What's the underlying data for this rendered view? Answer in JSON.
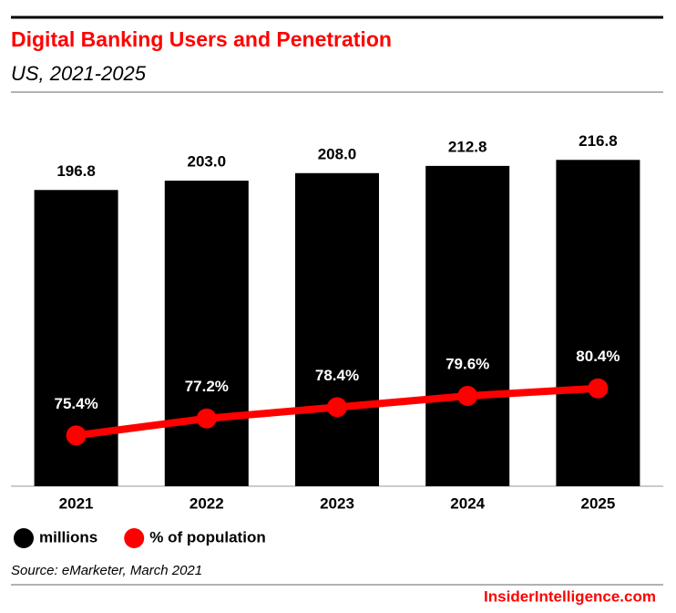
{
  "chart_data": {
    "type": "bar-line",
    "title": "Digital Banking Users and Penetration",
    "subtitle": "US, 2021-2025",
    "categories": [
      "2021",
      "2022",
      "2023",
      "2024",
      "2025"
    ],
    "series": [
      {
        "name": "millions",
        "color": "#000000",
        "values": [
          196.8,
          203.0,
          208.0,
          212.8,
          216.8
        ],
        "value_labels": [
          "196.8",
          "203.0",
          "208.0",
          "212.8",
          "216.8"
        ]
      },
      {
        "name": "% of population",
        "color": "#ff0000",
        "axis": "y2",
        "values": [
          75.4,
          77.2,
          78.4,
          79.6,
          80.4
        ],
        "value_labels": [
          "75.4%",
          "77.2%",
          "78.4%",
          "79.6%",
          "80.4%"
        ]
      }
    ],
    "ylim": [
      0,
      250
    ],
    "y2lim": [
      70,
      110
    ],
    "legend": "bottom-left",
    "source": "Source: eMarketer, March 2021",
    "brand": "InsiderIntelligence.com"
  }
}
